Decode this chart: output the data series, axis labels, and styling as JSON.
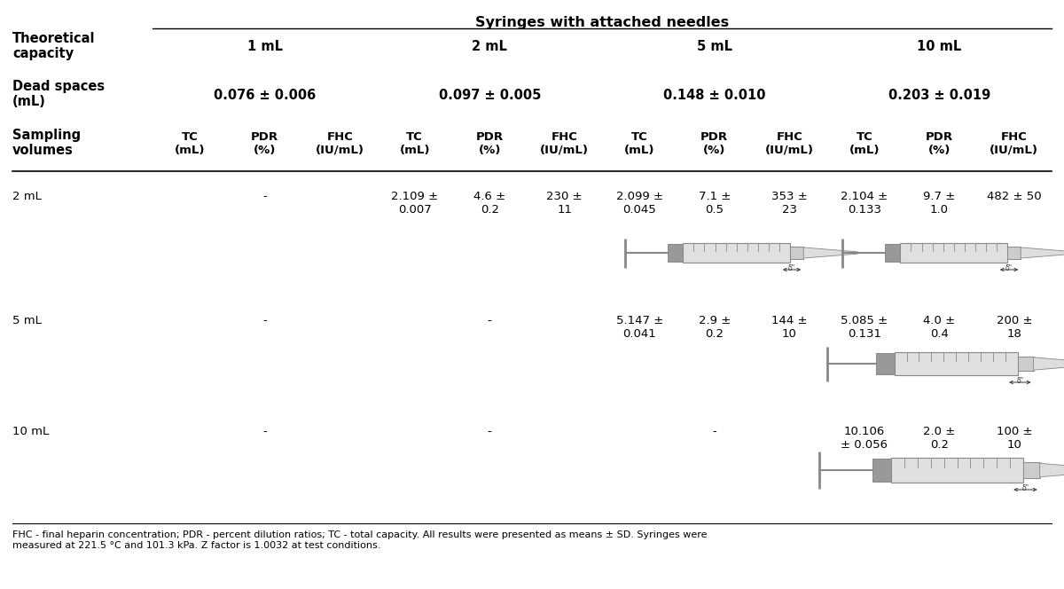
{
  "title": "Syringes with attached needles",
  "header_row1_label": "Theoretical\ncapacity",
  "header_row2_label": "Dead spaces\n(mL)",
  "header_row3_label": "Sampling\nvolumes",
  "capacities": [
    "1 mL",
    "2 mL",
    "5 mL",
    "10 mL"
  ],
  "dead_spaces": [
    "0.076 ± 0.006",
    "0.097 ± 0.005",
    "0.148 ± 0.010",
    "0.203 ± 0.019"
  ],
  "sampling_rows": [
    "2 mL",
    "5 mL",
    "10 mL"
  ],
  "cell_data": [
    [
      "",
      "-",
      "",
      "2.109 ±\n0.007",
      "4.6 ±\n0.2",
      "230 ±\n11",
      "2.099 ±\n0.045",
      "7.1 ±\n0.5",
      "353 ±\n23",
      "2.104 ±\n0.133",
      "9.7 ±\n1.0",
      "482 ± 50"
    ],
    [
      "",
      "-",
      "",
      "",
      "-",
      "",
      "5.147 ±\n0.041",
      "2.9 ±\n0.2",
      "144 ±\n10",
      "5.085 ±\n0.131",
      "4.0 ±\n0.4",
      "200 ±\n18"
    ],
    [
      "",
      "-",
      "",
      "",
      "-",
      "",
      "",
      "-",
      "",
      "10.106\n± 0.056",
      "2.0 ±\n0.2",
      "100 ±\n10"
    ]
  ],
  "footnote": "FHC - final heparin concentration; PDR - percent dilution ratios; TC - total capacity. All results were presented as means ± SD. Syringes were\nmeasured at 221.5 °C and 101.3 kPa. Z factor is 1.0032 at test conditions.",
  "bg_color": "#ffffff",
  "text_color": "#000000",
  "line_color": "#000000",
  "syringe_barrel_color": "#b8b8b8",
  "syringe_dark_color": "#888888",
  "syringe_light_color": "#e0e0e0"
}
